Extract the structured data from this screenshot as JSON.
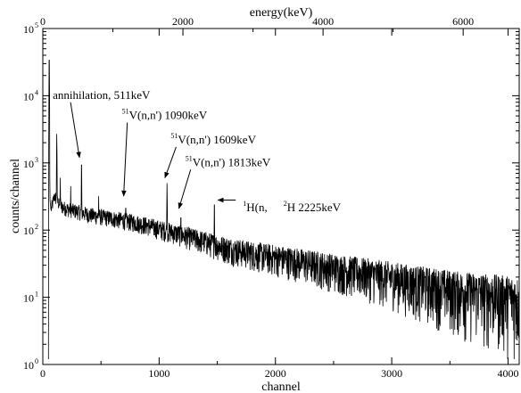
{
  "chart_data": {
    "type": "line",
    "xlabel": "channel",
    "ylabel": "counts/channel",
    "x2label": "energy(keV)",
    "xlim": [
      0,
      4096
    ],
    "ylim": [
      1,
      100000
    ],
    "yscale": "log",
    "x2lim": [
      0,
      6800
    ],
    "xticks": [
      {
        "value": 0,
        "label": "0"
      },
      {
        "value": 1000,
        "label": "1000"
      },
      {
        "value": 2000,
        "label": "2000"
      },
      {
        "value": 3000,
        "label": "3000"
      },
      {
        "value": 4000,
        "label": "4000"
      }
    ],
    "x2ticks": [
      {
        "value": 0,
        "label": "0"
      },
      {
        "value": 2000,
        "label": "2000"
      },
      {
        "value": 4000,
        "label": "4000"
      },
      {
        "value": 6000,
        "label": "6000"
      }
    ],
    "yticks": [
      {
        "value": 1,
        "label": "10",
        "exp": "0"
      },
      {
        "value": 10,
        "label": "10",
        "exp": "1"
      },
      {
        "value": 100,
        "label": "10",
        "exp": "2"
      },
      {
        "value": 1000,
        "label": "10",
        "exp": "3"
      },
      {
        "value": 10000,
        "label": "10",
        "exp": "4"
      },
      {
        "value": 100000,
        "label": "10",
        "exp": "5"
      }
    ],
    "grid": false,
    "series": [
      {
        "continuum": [
          [
            48,
            1
          ],
          [
            55,
            40000
          ],
          [
            60,
            300
          ],
          [
            70,
            200
          ],
          [
            100,
            320
          ],
          [
            150,
            230
          ],
          [
            200,
            210
          ],
          [
            300,
            190
          ],
          [
            400,
            170
          ],
          [
            500,
            160
          ],
          [
            600,
            150
          ],
          [
            700,
            140
          ],
          [
            800,
            130
          ],
          [
            900,
            118
          ],
          [
            1000,
            105
          ],
          [
            1100,
            95
          ],
          [
            1200,
            85
          ],
          [
            1300,
            76
          ],
          [
            1400,
            68
          ],
          [
            1500,
            60
          ],
          [
            1600,
            54
          ],
          [
            1800,
            46
          ],
          [
            2000,
            40
          ],
          [
            2200,
            35
          ],
          [
            2400,
            30
          ],
          [
            2600,
            26
          ],
          [
            2800,
            23
          ],
          [
            3000,
            20
          ],
          [
            3200,
            17
          ],
          [
            3400,
            15
          ],
          [
            3600,
            13
          ],
          [
            3800,
            12
          ],
          [
            4000,
            11
          ],
          [
            4096,
            10
          ]
        ],
        "peaks": [
          {
            "x": 55,
            "y": 40000
          },
          {
            "x": 120,
            "y": 2700
          },
          {
            "x": 150,
            "y": 600
          },
          {
            "x": 240,
            "y": 450
          },
          {
            "x": 333,
            "y": 1100
          },
          {
            "x": 480,
            "y": 320
          },
          {
            "x": 713,
            "y": 250
          },
          {
            "x": 1068,
            "y": 500
          },
          {
            "x": 1187,
            "y": 180
          },
          {
            "x": 1475,
            "y": 280
          }
        ]
      }
    ],
    "annotations": [
      {
        "text": "annihilation, 511keV",
        "sup": "",
        "tx": 85,
        "ty": 9000,
        "ax": 315,
        "ay": 1200
      },
      {
        "text": "V(n,n') 1090keV",
        "sup": "51",
        "tx": 680,
        "ty": 4500,
        "ax": 695,
        "ay": 320
      },
      {
        "text": "V(n,n') 1609keV",
        "sup": "51",
        "tx": 1100,
        "ty": 1950,
        "ax": 1050,
        "ay": 600
      },
      {
        "text": "V(n,n') 1813keV",
        "sup": "51",
        "tx": 1225,
        "ty": 900,
        "ax": 1170,
        "ay": 210
      }
    ],
    "h_annotation": {
      "sup1": "1",
      "pre": "H(n,",
      "sup2": "2",
      "post": "H 2225keV",
      "x": 1720,
      "y": 250,
      "ax": 1505,
      "ay": 280
    }
  }
}
